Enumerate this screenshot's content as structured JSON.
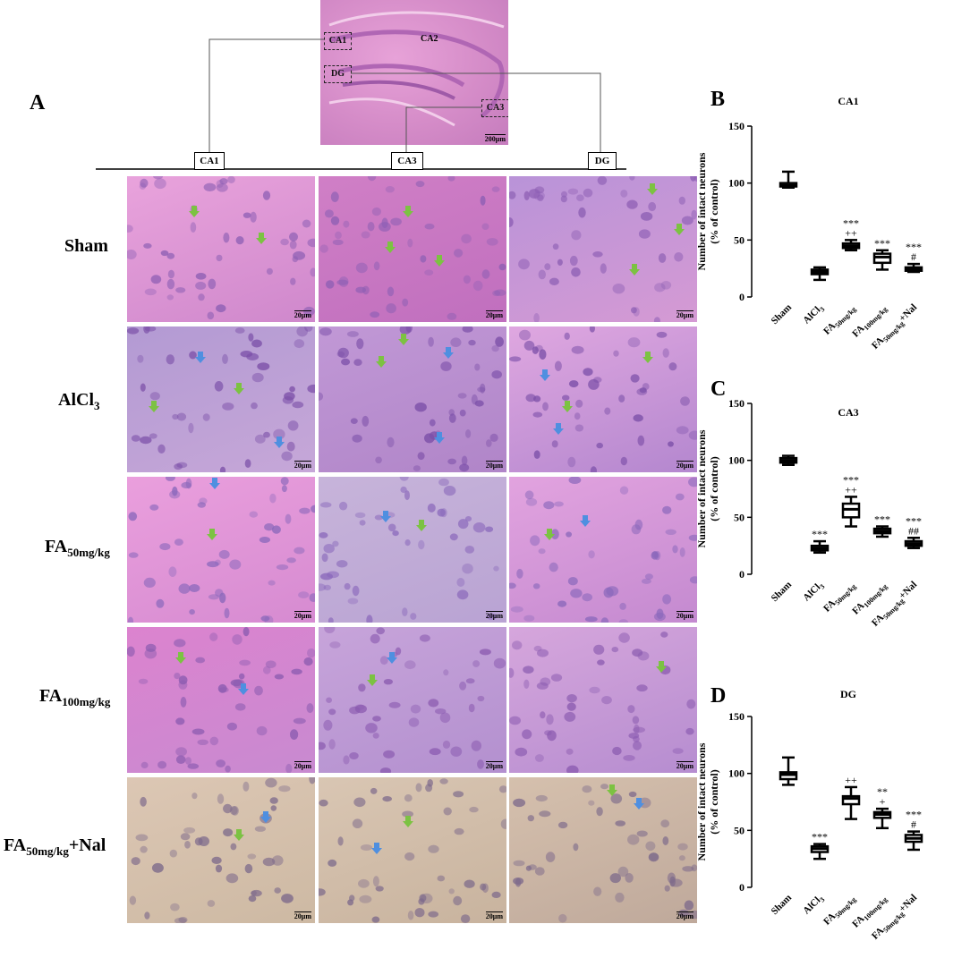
{
  "panel_A": {
    "letter": "A",
    "overview": {
      "regions": [
        "CA1",
        "CA2",
        "DG",
        "CA3"
      ],
      "scale": "200μm"
    },
    "columns": [
      "CA1",
      "CA3",
      "DG"
    ],
    "rows": [
      {
        "name": "Sham",
        "sub": "",
        "tail": ""
      },
      {
        "name": "AlCl",
        "sub": "3",
        "tail": ""
      },
      {
        "name": "FA",
        "sub": "50mg/kg",
        "tail": ""
      },
      {
        "name": "FA",
        "sub": "100mg/kg",
        "tail": ""
      },
      {
        "name": "FA",
        "sub": "50mg/kg",
        "tail": "+Nal"
      }
    ],
    "scale_bar": "20μm"
  },
  "colors": {
    "he_pink": "#d98ad0",
    "he_purple": "#a97ec8",
    "nal_tan": "#d7c8b6",
    "green_arrow": "#7cc242",
    "blue_arrow": "#4f8fe0"
  },
  "chart_data": [
    {
      "panel": "B",
      "type": "box",
      "title": "CA1",
      "ylabel": "Number of intact neurons\n(% of control)",
      "ylim": [
        0,
        150
      ],
      "yticks": [
        0,
        50,
        100,
        150
      ],
      "categories": [
        {
          "name": "Sham",
          "sub": "",
          "tail": ""
        },
        {
          "name": "AlCl",
          "sub": "3",
          "tail": ""
        },
        {
          "name": "FA",
          "sub": "50mg/kg",
          "tail": ""
        },
        {
          "name": "FA",
          "sub": "100mg/kg",
          "tail": ""
        },
        {
          "name": "FA",
          "sub": "50mg/kg",
          "tail": "+Nal"
        }
      ],
      "boxes": [
        {
          "min": 96,
          "q1": 97,
          "median": 98,
          "q3": 100,
          "max": 110
        },
        {
          "min": 15,
          "q1": 20,
          "median": 22,
          "q3": 24,
          "max": 26
        },
        {
          "min": 41,
          "q1": 43,
          "median": 45,
          "q3": 47,
          "max": 50
        },
        {
          "min": 24,
          "q1": 30,
          "median": 35,
          "q3": 38,
          "max": 41
        },
        {
          "min": 22,
          "q1": 23,
          "median": 24,
          "q3": 26,
          "max": 29
        }
      ],
      "annotations": [
        [],
        [],
        [
          "***",
          "++"
        ],
        [
          "***"
        ],
        [
          "***",
          "#"
        ]
      ]
    },
    {
      "panel": "C",
      "type": "box",
      "title": "CA3",
      "ylabel": "Number of intact neurons\n(% of control)",
      "ylim": [
        0,
        150
      ],
      "yticks": [
        0,
        50,
        100,
        150
      ],
      "categories": [
        {
          "name": "Sham",
          "sub": "",
          "tail": ""
        },
        {
          "name": "AlCl",
          "sub": "3",
          "tail": ""
        },
        {
          "name": "FA",
          "sub": "50mg/kg",
          "tail": ""
        },
        {
          "name": "FA",
          "sub": "100mg/kg",
          "tail": ""
        },
        {
          "name": "FA",
          "sub": "50mg/kg",
          "tail": "+Nal"
        }
      ],
      "boxes": [
        {
          "min": 96,
          "q1": 98,
          "median": 100,
          "q3": 102,
          "max": 104
        },
        {
          "min": 19,
          "q1": 21,
          "median": 23,
          "q3": 25,
          "max": 29
        },
        {
          "min": 42,
          "q1": 50,
          "median": 57,
          "q3": 62,
          "max": 68
        },
        {
          "min": 33,
          "q1": 36,
          "median": 38,
          "q3": 40,
          "max": 42
        },
        {
          "min": 23,
          "q1": 25,
          "median": 27,
          "q3": 29,
          "max": 32
        }
      ],
      "annotations": [
        [],
        [
          "***"
        ],
        [
          "***",
          "++"
        ],
        [
          "***"
        ],
        [
          "***",
          "##"
        ]
      ]
    },
    {
      "panel": "D",
      "type": "box",
      "title": "DG",
      "ylabel": "Number of intact neurons\n(% of control)",
      "ylim": [
        0,
        150
      ],
      "yticks": [
        0,
        50,
        100,
        150
      ],
      "categories": [
        {
          "name": "Sham",
          "sub": "",
          "tail": ""
        },
        {
          "name": "AlCl",
          "sub": "3",
          "tail": ""
        },
        {
          "name": "FA",
          "sub": "50mg/kg",
          "tail": ""
        },
        {
          "name": "FA",
          "sub": "100mg/kg",
          "tail": ""
        },
        {
          "name": "FA",
          "sub": "50mg/kg",
          "tail": "+Nal"
        }
      ],
      "boxes": [
        {
          "min": 90,
          "q1": 95,
          "median": 99,
          "q3": 101,
          "max": 114
        },
        {
          "min": 25,
          "q1": 31,
          "median": 34,
          "q3": 36,
          "max": 38
        },
        {
          "min": 60,
          "q1": 73,
          "median": 78,
          "q3": 80,
          "max": 88
        },
        {
          "min": 52,
          "q1": 61,
          "median": 64,
          "q3": 66,
          "max": 69
        },
        {
          "min": 33,
          "q1": 40,
          "median": 43,
          "q3": 46,
          "max": 49
        }
      ],
      "annotations": [
        [],
        [
          "***"
        ],
        [
          "++"
        ],
        [
          "**",
          "+"
        ],
        [
          "***",
          "#"
        ]
      ]
    }
  ]
}
